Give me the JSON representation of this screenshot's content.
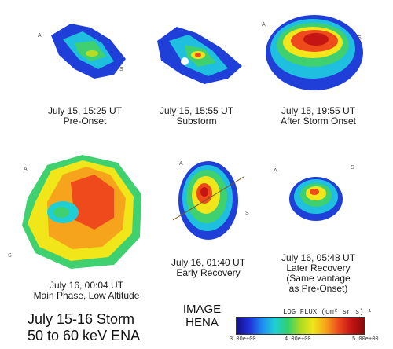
{
  "panels": [
    {
      "caption_line1": "July 15, 15:25 UT",
      "caption_line2": "Pre-Onset"
    },
    {
      "caption_line1": "July 15, 15:55 UT",
      "caption_line2": "Substorm"
    },
    {
      "caption_line1": "July 15, 19:55 UT",
      "caption_line2": "After Storm Onset"
    },
    {
      "caption_line1": "July 16, 00:04 UT",
      "caption_line2": "Main Phase, Low Altitude"
    },
    {
      "caption_line1": "July 16, 01:40 UT",
      "caption_line2": "Early Recovery"
    },
    {
      "caption_line1": "July 16, 05:48 UT",
      "caption_line2": "Later Recovery",
      "caption_line3": "(Same vantage",
      "caption_line4": "as Pre-Onset)"
    }
  ],
  "title_line1": "July 15-16 Storm",
  "title_line2": "50 to 60 keV ENA",
  "instrument_line1": "IMAGE",
  "instrument_line2": "HENA",
  "colorbar": {
    "title": "LOG FLUX (cm² sr s)⁻¹",
    "min_label": "3.00e+00",
    "mid_label": "4.00e+00",
    "max_label": "5.00e+00",
    "colors": [
      "#14108a",
      "#1f2fd8",
      "#1f8cf0",
      "#1fcfd6",
      "#2fd070",
      "#a9dc25",
      "#f0e61a",
      "#f6a41c",
      "#ee4a1c",
      "#c41414",
      "#8a0a0a"
    ]
  },
  "markers": {
    "a": "A",
    "s": "S"
  }
}
